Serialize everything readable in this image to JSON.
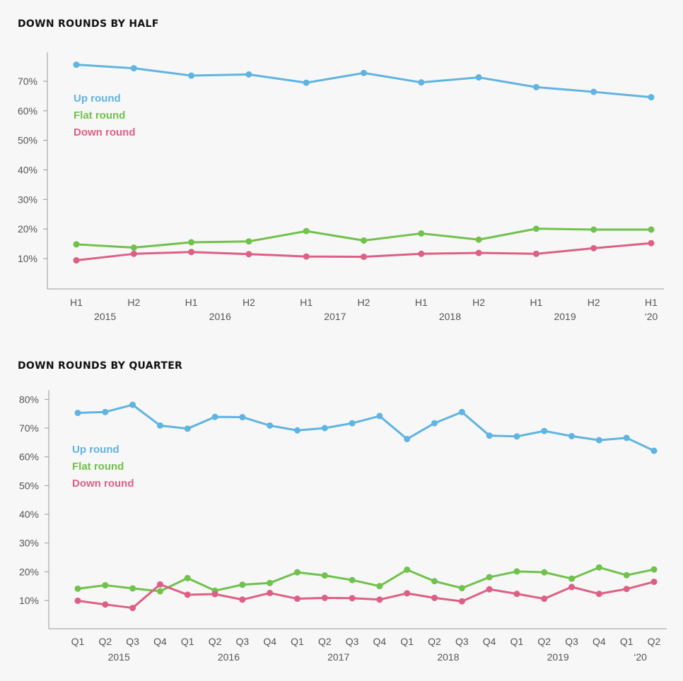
{
  "colors": {
    "up": "#5fb4e2",
    "flat": "#70c24c",
    "down": "#de5f86",
    "axis": "#999999"
  },
  "chart_data": [
    {
      "type": "line",
      "title": "DOWN ROUNDS BY HALF",
      "xlabel": "",
      "ylabel": "",
      "ylim": [
        0,
        80
      ],
      "grid": false,
      "legend_position": "top-left",
      "y_ticks": [
        "10%",
        "20%",
        "30%",
        "40%",
        "50%",
        "60%",
        "70%"
      ],
      "y_tick_values": [
        10,
        20,
        30,
        40,
        50,
        60,
        70
      ],
      "categories": [
        "H1",
        "H2",
        "H1",
        "H2",
        "H1",
        "H2",
        "H1",
        "H2",
        "H1",
        "H2",
        "H1"
      ],
      "year_labels": [
        {
          "label": "2015",
          "index": 0.5
        },
        {
          "label": "2016",
          "index": 2.5
        },
        {
          "label": "2017",
          "index": 4.5
        },
        {
          "label": "2018",
          "index": 6.5
        },
        {
          "label": "2019",
          "index": 8.5
        },
        {
          "label": "‘20",
          "index": 10
        }
      ],
      "series": [
        {
          "name": "Up round",
          "color_key": "up",
          "values": [
            75.6,
            74.4,
            71.9,
            72.3,
            69.5,
            72.8,
            69.6,
            71.3,
            68.0,
            66.4,
            64.6
          ]
        },
        {
          "name": "Flat round",
          "color_key": "flat",
          "values": [
            14.8,
            13.7,
            15.5,
            15.8,
            19.3,
            16.1,
            18.5,
            16.4,
            20.1,
            19.8,
            19.8
          ]
        },
        {
          "name": "Down round",
          "color_key": "down",
          "values": [
            9.4,
            11.6,
            12.2,
            11.5,
            10.7,
            10.6,
            11.6,
            11.9,
            11.6,
            13.5,
            15.2
          ]
        }
      ]
    },
    {
      "type": "line",
      "title": "DOWN ROUNDS BY QUARTER",
      "xlabel": "",
      "ylabel": "",
      "ylim": [
        0,
        80
      ],
      "grid": false,
      "legend_position": "top-left",
      "y_ticks": [
        "10%",
        "20%",
        "30%",
        "40%",
        "50%",
        "60%",
        "70%",
        "80%"
      ],
      "y_tick_values": [
        10,
        20,
        30,
        40,
        50,
        60,
        70,
        80
      ],
      "categories": [
        "Q1",
        "Q2",
        "Q3",
        "Q4",
        "Q1",
        "Q2",
        "Q3",
        "Q4",
        "Q1",
        "Q2",
        "Q3",
        "Q4",
        "Q1",
        "Q2",
        "Q3",
        "Q4",
        "Q1",
        "Q2",
        "Q3",
        "Q4",
        "Q1",
        "Q2"
      ],
      "year_labels": [
        {
          "label": "2015",
          "index": 1.5
        },
        {
          "label": "2016",
          "index": 5.5
        },
        {
          "label": "2017",
          "index": 9.5
        },
        {
          "label": "2018",
          "index": 13.5
        },
        {
          "label": "2019",
          "index": 17.5
        },
        {
          "label": "‘20",
          "index": 20.5
        }
      ],
      "series": [
        {
          "name": "Up round",
          "color_key": "up",
          "values": [
            75.3,
            75.6,
            78.1,
            70.9,
            69.8,
            73.9,
            73.8,
            70.9,
            69.2,
            70.0,
            71.7,
            74.2,
            66.2,
            71.7,
            75.6,
            67.4,
            67.1,
            69.0,
            67.2,
            65.8,
            66.6,
            62.1
          ]
        },
        {
          "name": "Flat round",
          "color_key": "flat",
          "values": [
            14.1,
            15.3,
            14.2,
            13.2,
            17.8,
            13.4,
            15.5,
            16.1,
            19.8,
            18.7,
            17.1,
            15.0,
            20.7,
            16.7,
            14.3,
            18.1,
            20.1,
            19.8,
            17.6,
            21.5,
            18.8,
            20.8
          ]
        },
        {
          "name": "Down round",
          "color_key": "down",
          "values": [
            9.9,
            8.6,
            7.4,
            15.6,
            12.0,
            12.2,
            10.3,
            12.6,
            10.6,
            10.9,
            10.8,
            10.3,
            12.5,
            10.9,
            9.7,
            13.9,
            12.3,
            10.6,
            14.7,
            12.3,
            14.0,
            16.5
          ]
        }
      ]
    }
  ]
}
